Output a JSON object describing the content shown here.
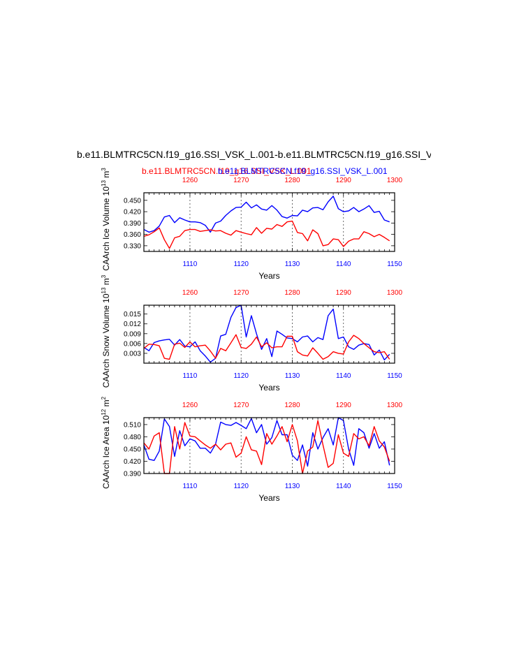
{
  "figure": {
    "title": "b.e11.BLMTRC5CN.f19_g16.SSI_VSK_L.001-b.e11.BLMTRC5CN.f19_g16.SSI_V",
    "subtitle_red": "b.e11.BLMTRC5CN.f19_g16.SSI_VSK_L.001",
    "subtitle_blue": "b.e11.BLMTRC5CN.f19_g16.SSI_VSK_L.001",
    "colors": {
      "red": "#ff0000",
      "blue": "#0000ff",
      "axis": "#000000",
      "grid": "#444444"
    }
  },
  "chart_data": [
    {
      "type": "line",
      "ylabel": "CAArch Ice Volume 10^13 m^3",
      "xlabel": "Years",
      "top_axis": {
        "color": "red",
        "ticks": [
          1260,
          1270,
          1280,
          1290,
          1300
        ]
      },
      "bottom_axis": {
        "color": "blue",
        "ticks": [
          1110,
          1120,
          1130,
          1140,
          1150
        ]
      },
      "xlim": [
        1101,
        1150
      ],
      "ylim": [
        0.315,
        0.47
      ],
      "yticks": [
        "0.330",
        "0.360",
        "0.390",
        "0.420",
        "0.450"
      ],
      "grid": "dashed vertical lines at 1110, 1120, 1130, 1140",
      "series": [
        {
          "color": "blue",
          "axis": "bottom",
          "x_start": 1101,
          "values": [
            0.373,
            0.366,
            0.37,
            0.382,
            0.406,
            0.41,
            0.391,
            0.404,
            0.398,
            0.393,
            0.393,
            0.391,
            0.384,
            0.366,
            0.39,
            0.395,
            0.41,
            0.422,
            0.431,
            0.432,
            0.445,
            0.43,
            0.438,
            0.427,
            0.424,
            0.436,
            0.424,
            0.407,
            0.403,
            0.41,
            0.409,
            0.424,
            0.42,
            0.43,
            0.431,
            0.425,
            0.446,
            0.461,
            0.428,
            0.42,
            0.422,
            0.431,
            0.42,
            0.427,
            0.436,
            0.418,
            0.421,
            0.398,
            0.393
          ]
        },
        {
          "color": "red",
          "axis": "top",
          "x_start": 1251,
          "values": [
            0.355,
            0.359,
            0.367,
            0.377,
            0.346,
            0.323,
            0.351,
            0.355,
            0.37,
            0.373,
            0.373,
            0.368,
            0.37,
            0.372,
            0.369,
            0.37,
            0.363,
            0.358,
            0.37,
            0.366,
            0.362,
            0.359,
            0.378,
            0.363,
            0.376,
            0.374,
            0.386,
            0.381,
            0.393,
            0.395,
            0.365,
            0.362,
            0.343,
            0.372,
            0.362,
            0.33,
            0.333,
            0.348,
            0.346,
            0.328,
            0.342,
            0.348,
            0.348,
            0.367,
            0.362,
            0.354,
            0.36,
            0.352,
            0.343
          ]
        }
      ]
    },
    {
      "type": "line",
      "ylabel": "CAArch Snow Volume 10^13 m^3",
      "xlabel": "Years",
      "top_axis": {
        "color": "red",
        "ticks": [
          1260,
          1270,
          1280,
          1290,
          1300
        ]
      },
      "bottom_axis": {
        "color": "blue",
        "ticks": [
          1110,
          1120,
          1130,
          1140,
          1150
        ]
      },
      "xlim": [
        1101,
        1150
      ],
      "ylim": [
        0.0,
        0.0177
      ],
      "yticks": [
        "0.003",
        "0.006",
        "0.009",
        "0.012",
        "0.015"
      ],
      "grid": "dashed vertical lines at 1110, 1120, 1130, 1140",
      "series": [
        {
          "color": "blue",
          "axis": "bottom",
          "x_start": 1101,
          "values": [
            0.0048,
            0.0038,
            0.0063,
            0.0068,
            0.0071,
            0.0073,
            0.0055,
            0.0072,
            0.0052,
            0.005,
            0.0065,
            0.0038,
            0.0022,
            0.0003,
            0.0015,
            0.0083,
            0.0088,
            0.014,
            0.017,
            0.018,
            0.008,
            0.0145,
            0.009,
            0.0042,
            0.0075,
            0.002,
            0.0098,
            0.0088,
            0.0077,
            0.0075,
            0.0065,
            0.008,
            0.0083,
            0.0065,
            0.0078,
            0.0072,
            0.0145,
            0.0165,
            0.0075,
            0.008,
            0.005,
            0.0042,
            0.0055,
            0.006,
            0.0057,
            0.0025,
            0.004,
            0.001,
            0.0027
          ]
        },
        {
          "color": "red",
          "axis": "top",
          "x_start": 1251,
          "values": [
            0.0045,
            0.0058,
            0.0057,
            0.0053,
            0.0015,
            0.0012,
            0.0058,
            0.0061,
            0.0048,
            0.0065,
            0.005,
            0.0053,
            0.0055,
            0.0037,
            0.0015,
            0.0045,
            0.0038,
            0.0062,
            0.0087,
            0.0048,
            0.0045,
            0.0058,
            0.008,
            0.005,
            0.0062,
            0.0047,
            0.005,
            0.005,
            0.0082,
            0.0082,
            0.0035,
            0.0025,
            0.0022,
            0.0047,
            0.003,
            0.0012,
            0.002,
            0.0035,
            0.003,
            0.0028,
            0.0065,
            0.0085,
            0.0075,
            0.006,
            0.0047,
            0.0035,
            0.0032,
            0.0035,
            0.0012
          ]
        }
      ]
    },
    {
      "type": "line",
      "ylabel": "CAArch Ice Area 10^12 m^2",
      "xlabel": "Years",
      "top_axis": {
        "color": "red",
        "ticks": [
          1260,
          1270,
          1280,
          1290,
          1300
        ]
      },
      "bottom_axis": {
        "color": "blue",
        "ticks": [
          1110,
          1120,
          1130,
          1140,
          1150
        ]
      },
      "xlim": [
        1101,
        1150
      ],
      "ylim": [
        0.39,
        0.527
      ],
      "yticks": [
        "0.390",
        "0.420",
        "0.450",
        "0.480",
        "0.510"
      ],
      "grid": "dashed vertical lines at 1110, 1120, 1130, 1140",
      "series": [
        {
          "color": "blue",
          "axis": "bottom",
          "x_start": 1101,
          "values": [
            0.46,
            0.425,
            0.422,
            0.445,
            0.524,
            0.505,
            0.432,
            0.495,
            0.458,
            0.475,
            0.47,
            0.452,
            0.452,
            0.44,
            0.462,
            0.516,
            0.51,
            0.508,
            0.515,
            0.508,
            0.5,
            0.525,
            0.49,
            0.51,
            0.462,
            0.478,
            0.52,
            0.485,
            0.485,
            0.435,
            0.422,
            0.46,
            0.408,
            0.49,
            0.45,
            0.478,
            0.5,
            0.46,
            0.528,
            0.52,
            0.45,
            0.41,
            0.5,
            0.49,
            0.452,
            0.488,
            0.452,
            0.468,
            0.41
          ]
        },
        {
          "color": "red",
          "axis": "top",
          "x_start": 1251,
          "values": [
            0.465,
            0.45,
            0.482,
            0.49,
            0.39,
            0.375,
            0.505,
            0.45,
            0.515,
            0.482,
            0.48,
            0.47,
            0.46,
            0.452,
            0.462,
            0.448,
            0.462,
            0.465,
            0.43,
            0.44,
            0.48,
            0.448,
            0.445,
            0.412,
            0.488,
            0.462,
            0.482,
            0.505,
            0.468,
            0.51,
            0.47,
            0.39,
            0.445,
            0.455,
            0.52,
            0.46,
            0.405,
            0.415,
            0.485,
            0.44,
            0.432,
            0.488,
            0.475,
            0.48,
            0.458,
            0.505,
            0.47,
            0.455,
            0.42
          ]
        }
      ]
    }
  ]
}
